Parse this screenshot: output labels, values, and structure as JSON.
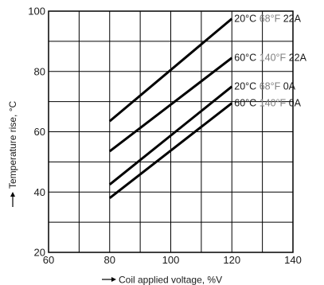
{
  "chart_data": {
    "type": "line",
    "xlabel": "Coil applied voltage, %V",
    "ylabel": "Temperature rise, °C",
    "xlim": [
      60,
      140
    ],
    "ylim": [
      20,
      100
    ],
    "x_ticks": [
      "60",
      "80",
      "100",
      "120",
      "140"
    ],
    "y_ticks": [
      "20",
      "40",
      "60",
      "80",
      "100"
    ],
    "x_grid_step": 10,
    "y_grid_step": 10,
    "grid": true,
    "colors": {
      "line": "#000000",
      "fahrenheit_text": "#808080",
      "text": "#1a1a1a"
    },
    "series": [
      {
        "label_celsius": "20°C",
        "label_fahrenheit": "68°F",
        "label_current": "22A",
        "x": [
          80,
          120
        ],
        "y": [
          63.5,
          97.5
        ]
      },
      {
        "label_celsius": "60°C",
        "label_fahrenheit": "140°F",
        "label_current": "22A",
        "x": [
          80,
          120
        ],
        "y": [
          53.5,
          84.5
        ]
      },
      {
        "label_celsius": "20°C",
        "label_fahrenheit": "68°F",
        "label_current": "0A",
        "x": [
          80,
          120
        ],
        "y": [
          42.5,
          75.0
        ]
      },
      {
        "label_celsius": "60°C",
        "label_fahrenheit": "140°F",
        "label_current": "0A",
        "x": [
          80,
          120
        ],
        "y": [
          38.0,
          69.5
        ]
      }
    ]
  }
}
